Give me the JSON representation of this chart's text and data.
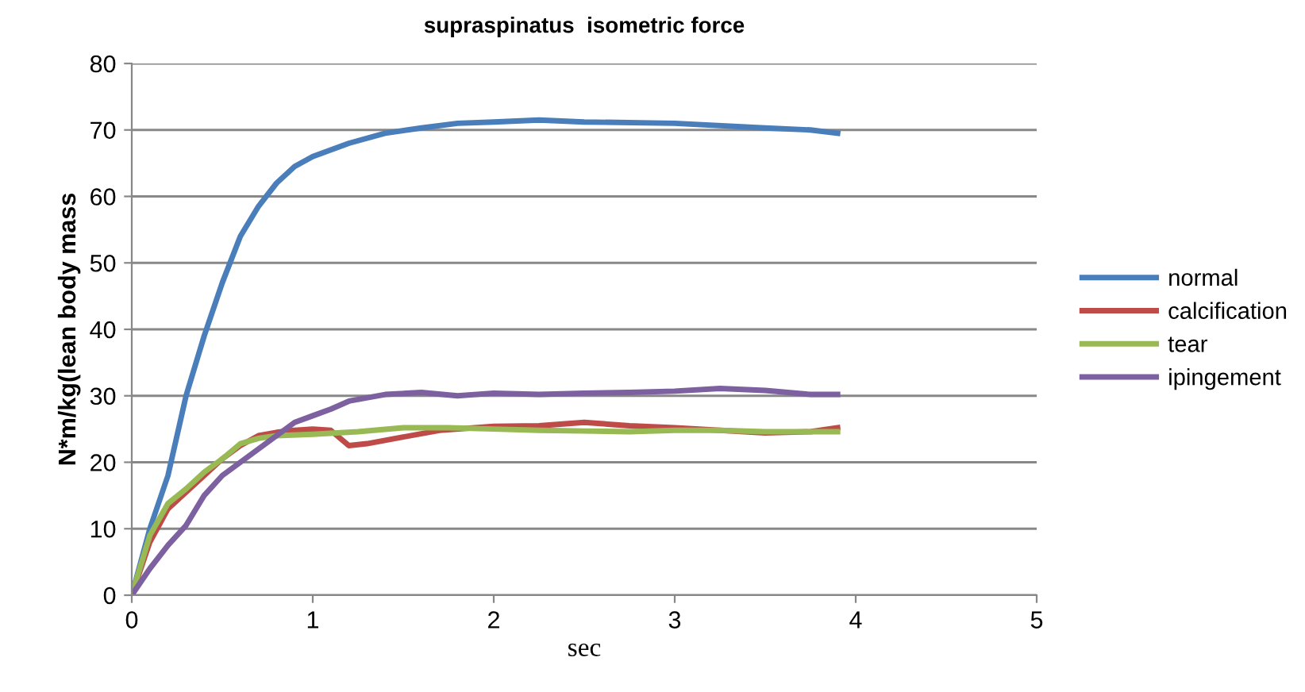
{
  "chart_data": {
    "type": "line",
    "title": "supraspinatus  isometric force",
    "xlabel": "sec",
    "ylabel": "N*m/kg(lean body mass",
    "xlim": [
      0,
      5
    ],
    "xticks": [
      0,
      1,
      2,
      3,
      4,
      5
    ],
    "ylim": [
      0,
      80
    ],
    "yticks": [
      0,
      10,
      20,
      30,
      40,
      50,
      60,
      70,
      80
    ],
    "grid": "y",
    "legend": "right",
    "marker": "none",
    "line_style": "solid",
    "series": [
      {
        "name": "normal",
        "color": "#4a7ebb",
        "x": [
          0,
          0.1,
          0.2,
          0.3,
          0.4,
          0.5,
          0.6,
          0.7,
          0.8,
          0.9,
          1.0,
          1.2,
          1.4,
          1.6,
          1.8,
          2.0,
          2.25,
          2.5,
          3.0,
          3.5,
          3.75,
          3.9
        ],
        "values": [
          0,
          10,
          18,
          30,
          39,
          47,
          54,
          58.5,
          62,
          64.5,
          66,
          68,
          69.5,
          70.3,
          71,
          71.2,
          71.5,
          71.2,
          71,
          70.3,
          70,
          69.5
        ]
      },
      {
        "name": "calcification",
        "color": "#be4b48",
        "x": [
          0,
          0.1,
          0.2,
          0.3,
          0.4,
          0.5,
          0.6,
          0.7,
          0.8,
          0.9,
          1.0,
          1.1,
          1.2,
          1.3,
          1.5,
          1.7,
          2.0,
          2.25,
          2.5,
          2.75,
          3.0,
          3.25,
          3.5,
          3.75,
          3.9
        ],
        "values": [
          0,
          8,
          13,
          15.5,
          18,
          20.5,
          22.5,
          24,
          24.5,
          24.8,
          25,
          24.8,
          22.5,
          22.8,
          23.8,
          24.8,
          25.4,
          25.5,
          26,
          25.5,
          25.2,
          24.8,
          24.4,
          24.6,
          25.2
        ]
      },
      {
        "name": "tear",
        "color": "#98b954",
        "x": [
          0,
          0.1,
          0.2,
          0.3,
          0.4,
          0.5,
          0.6,
          0.7,
          0.8,
          1.0,
          1.25,
          1.5,
          1.75,
          2.0,
          2.25,
          2.5,
          2.75,
          3.0,
          3.25,
          3.5,
          3.9
        ],
        "values": [
          0,
          9,
          13.8,
          16,
          18.5,
          20.5,
          22.8,
          23.6,
          24,
          24.2,
          24.6,
          25.2,
          25.2,
          25,
          24.8,
          24.7,
          24.6,
          24.8,
          24.8,
          24.6,
          24.6
        ]
      },
      {
        "name": "ipingement",
        "color": "#7d60a0",
        "x": [
          0,
          0.1,
          0.2,
          0.3,
          0.4,
          0.5,
          0.6,
          0.7,
          0.8,
          0.9,
          1.0,
          1.1,
          1.2,
          1.4,
          1.6,
          1.8,
          2.0,
          2.25,
          2.5,
          2.75,
          3.0,
          3.25,
          3.5,
          3.75,
          3.9
        ],
        "values": [
          0,
          4,
          7.5,
          10.5,
          15,
          18,
          20,
          22,
          24,
          26,
          27,
          28,
          29.2,
          30.2,
          30.5,
          30,
          30.4,
          30.2,
          30.4,
          30.5,
          30.7,
          31.1,
          30.8,
          30.2,
          30.2
        ]
      }
    ]
  }
}
